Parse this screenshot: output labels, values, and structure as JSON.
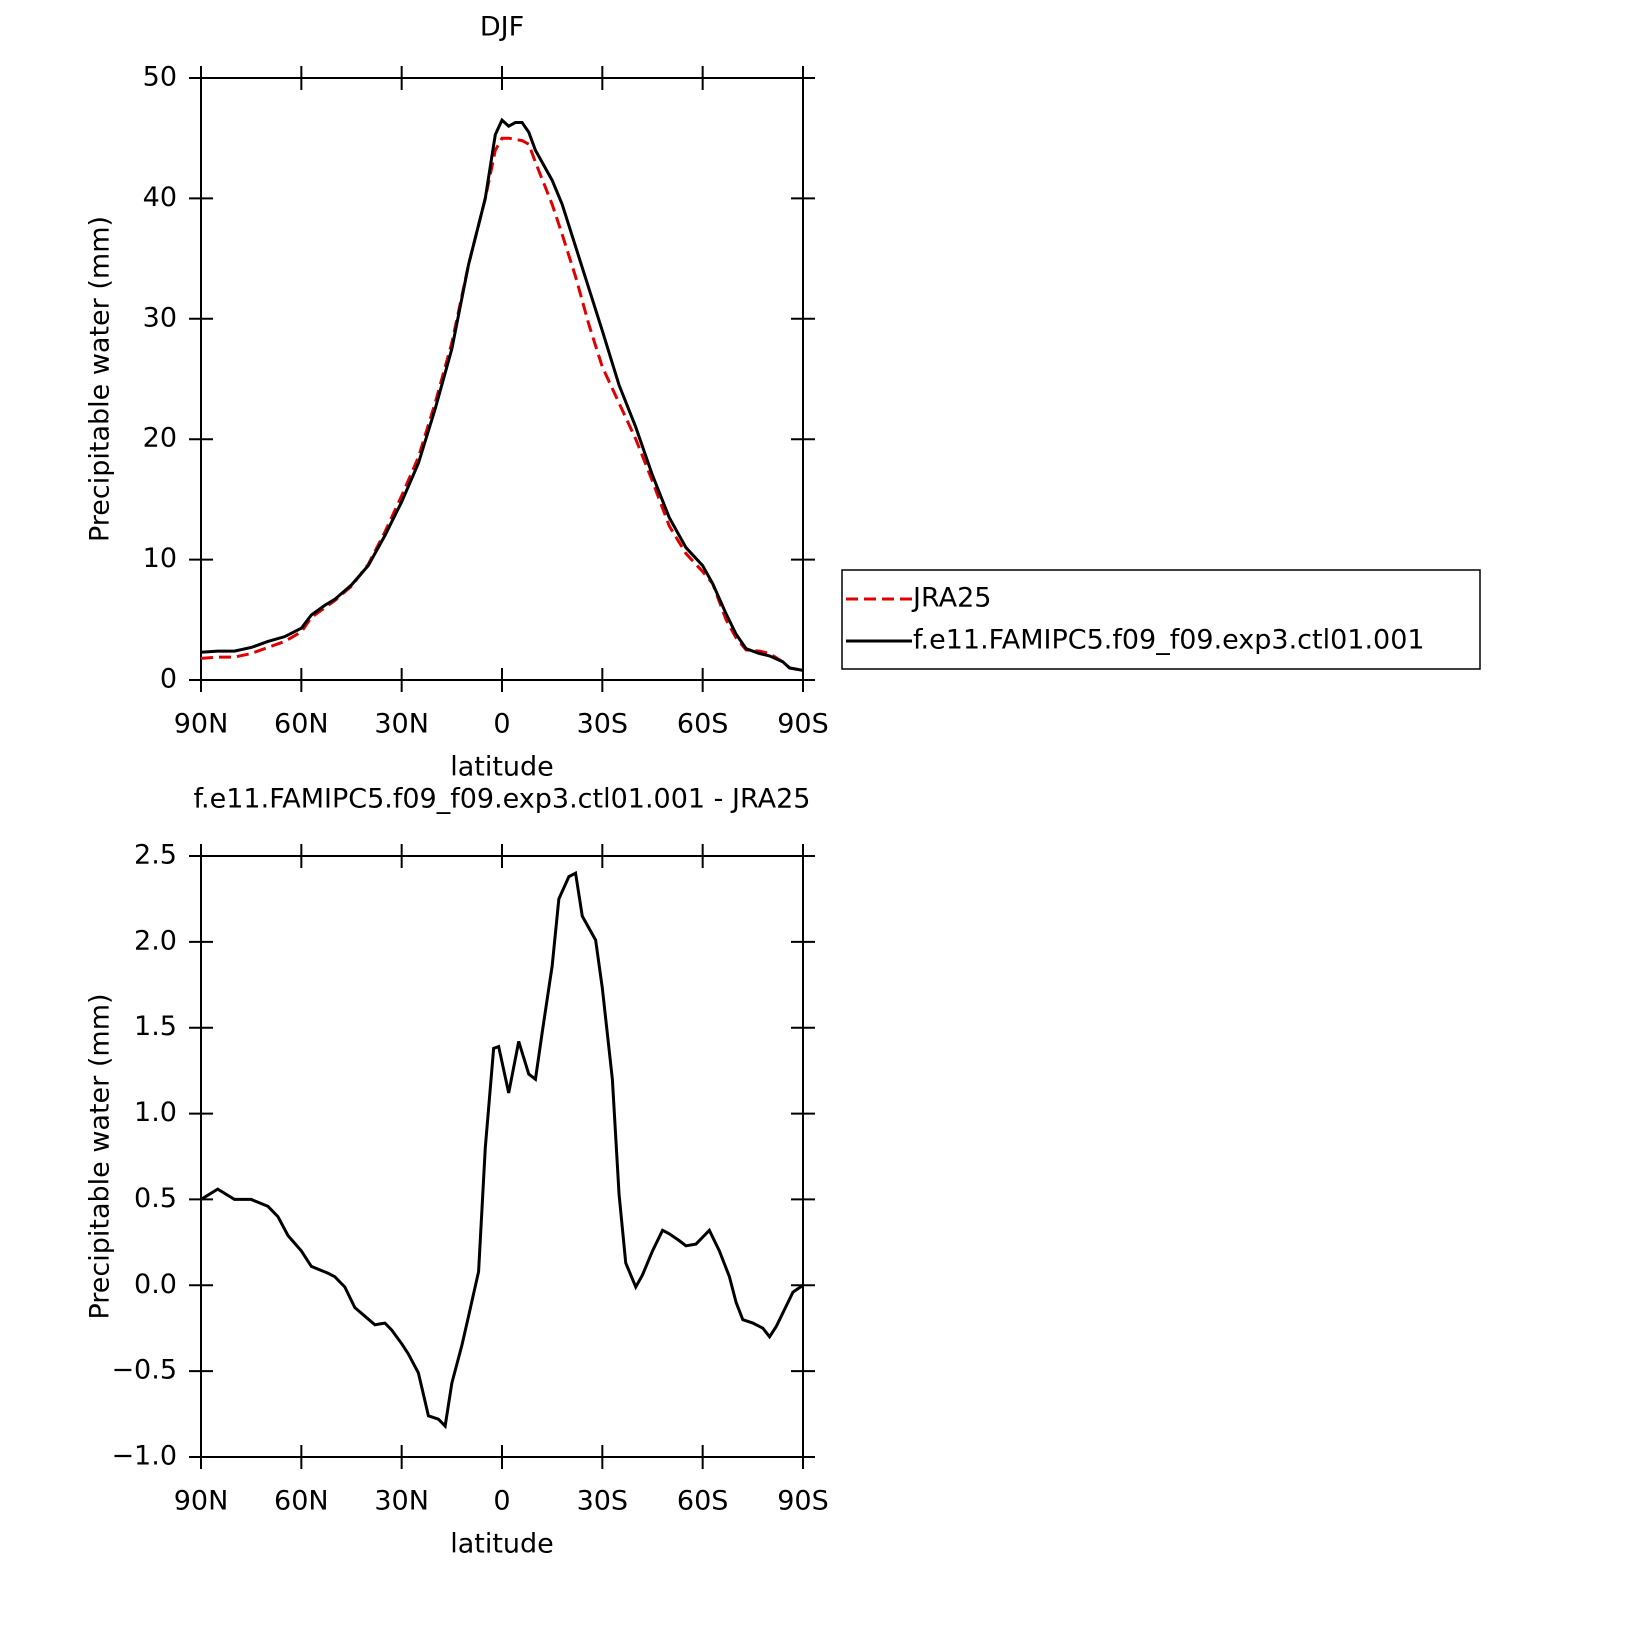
{
  "chart_data": [
    {
      "type": "line",
      "title": "DJF",
      "x_label": "latitude",
      "y_label": "Precipitable water (mm)",
      "x": [
        90,
        85,
        80,
        75,
        70,
        65,
        60,
        57,
        53,
        50,
        45,
        40,
        35,
        30,
        25,
        20,
        15,
        10,
        5,
        2,
        0,
        -2,
        -4,
        -6,
        -8,
        -10,
        -15,
        -18,
        -22,
        -26,
        -30,
        -35,
        -40,
        -45,
        -50,
        -55,
        -60,
        -63,
        -67,
        -70,
        -73,
        -77,
        -80,
        -84,
        -86,
        -90
      ],
      "series": [
        {
          "name": "JRA25",
          "color": "#e00000",
          "line_style": "dashed",
          "values": [
            1.8,
            1.9,
            1.9,
            2.2,
            2.7,
            3.2,
            4.0,
            5.2,
            6.0,
            6.6,
            7.8,
            9.6,
            12.3,
            15.3,
            18.5,
            23,
            28,
            34.5,
            40,
            44,
            45,
            45,
            44.9,
            44.8,
            44.5,
            43,
            39.5,
            37,
            33.5,
            29.5,
            26,
            23,
            20,
            16.5,
            12.8,
            10.5,
            9,
            8,
            5,
            3.5,
            2.5,
            2.4,
            2.2,
            1.5,
            1.0,
            0.8
          ]
        },
        {
          "name": "f.e11.FAMIPC5.f09_f09.exp3.ctl01.001",
          "color": "#000000",
          "line_style": "solid",
          "values": [
            2.3,
            2.4,
            2.4,
            2.7,
            3.2,
            3.6,
            4.3,
            5.4,
            6.2,
            6.7,
            7.9,
            9.5,
            12,
            14.8,
            18,
            22.5,
            27.5,
            34.5,
            40,
            45.3,
            46.5,
            46,
            46.3,
            46.3,
            45.5,
            44,
            41.5,
            39.5,
            36,
            32.5,
            29,
            24.5,
            21,
            17,
            13.5,
            11,
            9.5,
            8,
            5.5,
            3.8,
            2.6,
            2.2,
            2.0,
            1.5,
            1.0,
            0.8
          ]
        }
      ],
      "xlim": [
        90,
        -90
      ],
      "xticks": [
        {
          "value": 90,
          "label": "90N"
        },
        {
          "value": 60,
          "label": "60N"
        },
        {
          "value": 30,
          "label": "30N"
        },
        0,
        {
          "value": -30,
          "label": "30S"
        },
        {
          "value": -60,
          "label": "60S"
        },
        {
          "value": -90,
          "label": "90S"
        }
      ],
      "ylim": [
        0,
        50
      ],
      "yticks": [
        0,
        10,
        20,
        30,
        40,
        50
      ],
      "legend": "right"
    },
    {
      "type": "line",
      "title": "f.e11.FAMIPC5.f09_f09.exp3.ctl01.001 - JRA25",
      "x_label": "latitude",
      "y_label": "Precipitable water (mm)",
      "x": [
        90,
        85,
        80,
        75,
        70,
        67,
        64,
        60,
        57,
        52,
        50,
        47,
        44,
        41,
        38,
        35,
        33,
        30,
        28,
        25,
        22,
        19,
        17,
        15,
        12,
        10,
        7,
        5,
        2.5,
        1,
        -2,
        -4,
        -5,
        -8,
        -10,
        -12,
        -15,
        -17,
        -20,
        -22,
        -24,
        -28,
        -30,
        -33,
        -35,
        -37,
        -40,
        -42,
        -45,
        -48,
        -50,
        -53,
        -55,
        -58,
        -60,
        -62,
        -65,
        -68,
        -70,
        -72,
        -75,
        -78,
        -80,
        -82,
        -85,
        -87,
        -90
      ],
      "series": [
        {
          "color": "#000000",
          "line_style": "solid",
          "values": [
            0.5,
            0.56,
            0.5,
            0.5,
            0.46,
            0.4,
            0.29,
            0.2,
            0.11,
            0.07,
            0.05,
            -0.01,
            -0.13,
            -0.18,
            -0.23,
            -0.22,
            -0.26,
            -0.34,
            -0.4,
            -0.51,
            -0.76,
            -0.78,
            -0.82,
            -0.57,
            -0.35,
            -0.18,
            0.08,
            0.8,
            1.38,
            1.39,
            1.12,
            1.32,
            1.42,
            1.23,
            1.2,
            1.47,
            1.86,
            2.25,
            2.38,
            2.4,
            2.15,
            2.01,
            1.73,
            1.2,
            0.53,
            0.13,
            -0.01,
            0.06,
            0.2,
            0.32,
            0.3,
            0.26,
            0.23,
            0.24,
            0.28,
            0.32,
            0.2,
            0.05,
            -0.1,
            -0.2,
            -0.22,
            -0.25,
            -0.3,
            -0.24,
            -0.12,
            -0.04,
            0
          ]
        }
      ],
      "xlim": [
        90,
        -90
      ],
      "xticks": [
        {
          "value": 90,
          "label": "90N"
        },
        {
          "value": 60,
          "label": "60N"
        },
        {
          "value": 30,
          "label": "30N"
        },
        0,
        {
          "value": -30,
          "label": "30S"
        },
        {
          "value": -60,
          "label": "60S"
        },
        {
          "value": -90,
          "label": "90S"
        }
      ],
      "ylim": [
        -1,
        2.5
      ],
      "yticks": [
        {
          "value": -1,
          "label": "−1.0"
        },
        {
          "value": -0.5,
          "label": "−0.5"
        },
        {
          "value": 0,
          "label": "0.0"
        },
        0.5,
        {
          "value": 1,
          "label": "1.0"
        },
        1.5,
        {
          "value": 2,
          "label": "2.0"
        },
        2.5
      ]
    }
  ]
}
